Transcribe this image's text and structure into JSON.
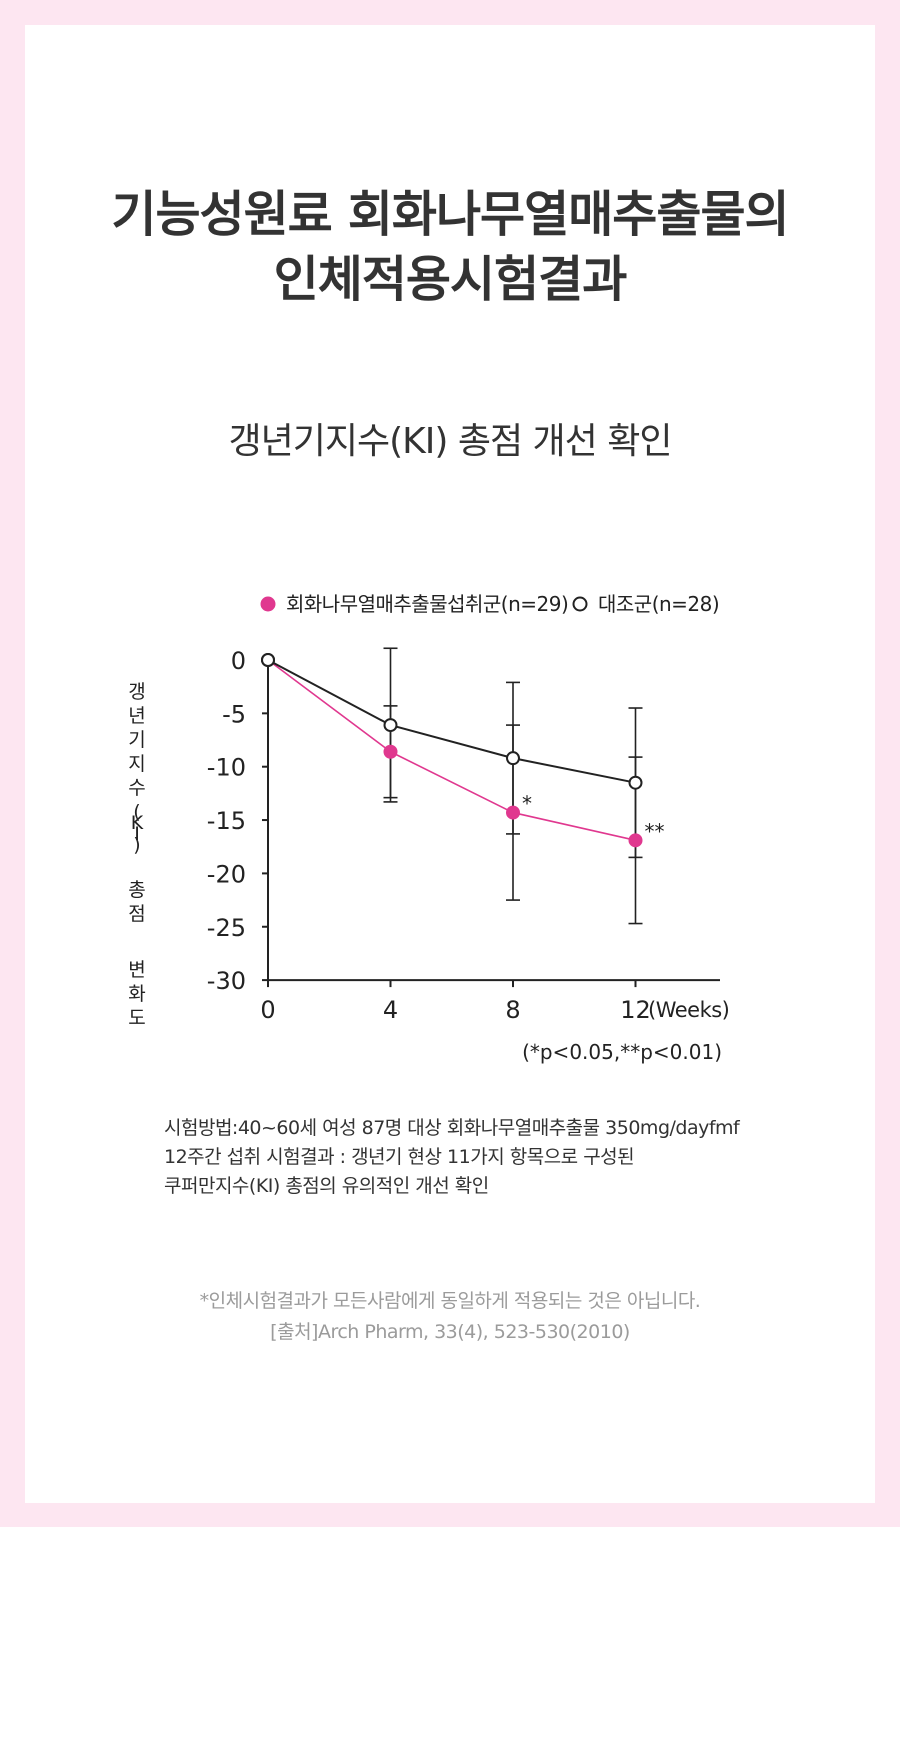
{
  "page": {
    "title_line1": "기능성원료 회화나무열매추출물의",
    "title_line2": "인체적용시험결과",
    "subtitle": "갱년기지수(KI) 총점 개선 확인",
    "method_lines": [
      "시험방법:40~60세 여성 87명 대상 회화나무열매추출물 350mg/dayfmf",
      "12주간 섭취 시험결과 : 갱년기 현상 11가지 항목으로 구성된",
      "쿠퍼만지수(KI) 총점의 유의적인 개선 확인"
    ],
    "disclaimer": "*인체시험결과가 모든사람에게 동일하게 적용되는 것은 아닙니다.",
    "source": "[출처]Arch Pharm, 33(4), 523-530(2010)"
  },
  "colors": {
    "frame": "#fde6f1",
    "treatment": "#e0388f",
    "control": "#222222"
  },
  "chart_data": {
    "type": "line",
    "title": "",
    "ylabel": "갱년기지수(KI) 총점 변화도",
    "xlabel": "(Weeks)",
    "x": [
      0,
      4,
      8,
      12
    ],
    "xticks": [
      "0",
      "4",
      "8",
      "12"
    ],
    "ylim": [
      -30,
      0
    ],
    "yticks": [
      "0",
      "-5",
      "-10",
      "-15",
      "-20",
      "-25",
      "-30"
    ],
    "grid": false,
    "legend_position": "top",
    "series": [
      {
        "name": "회화나무열매추출물섭취군(n=29)",
        "marker": "filled-circle",
        "color": "#e0388f",
        "values": [
          0,
          -8.6,
          -14.3,
          -16.9
        ],
        "error": [
          0,
          4.3,
          8.2,
          7.8
        ],
        "point_labels": [
          "",
          "",
          "*",
          "**"
        ]
      },
      {
        "name": "대조군(n=28)",
        "marker": "open-circle",
        "color": "#222222",
        "values": [
          0,
          -6.1,
          -9.2,
          -11.5
        ],
        "error": [
          0,
          7.2,
          7.1,
          7.0
        ],
        "point_labels": [
          "",
          "",
          "",
          ""
        ]
      }
    ],
    "note": "(*p<0.05,**p<0.01)"
  }
}
